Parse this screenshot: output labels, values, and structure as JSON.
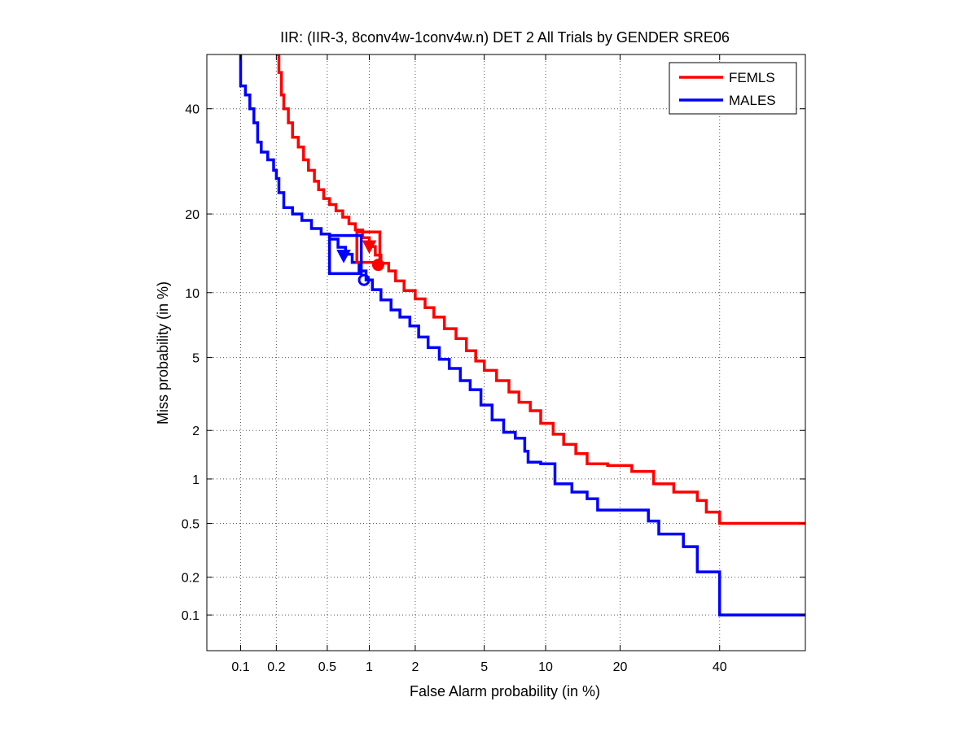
{
  "chart_data": {
    "type": "line",
    "title": "IIR: (IIR-3, 8conv4w-1conv4w.n) DET 2 All Trials by GENDER SRE06",
    "xlabel": "False Alarm probability (in %)",
    "ylabel": "Miss probability (in %)",
    "scale": "normal-deviate (probit)",
    "xlim": [
      0.05,
      60
    ],
    "ylim": [
      0.05,
      52
    ],
    "x_ticks": [
      0.1,
      0.2,
      0.5,
      1,
      2,
      5,
      10,
      20,
      40
    ],
    "x_tick_labels": [
      "0.1",
      "0.2",
      "0.5",
      "1",
      "2",
      "5",
      "10",
      "20",
      "40"
    ],
    "y_ticks": [
      0.1,
      0.2,
      0.5,
      1,
      2,
      5,
      10,
      20,
      40
    ],
    "y_tick_labels": [
      "0.1",
      "0.2",
      "0.5",
      "1",
      "2",
      "5",
      "10",
      "20",
      "40"
    ],
    "grid": true,
    "legend_position": "top-right",
    "series": [
      {
        "name": "FEMLS",
        "color": "#ff0000",
        "points": [
          [
            0.2,
            52
          ],
          [
            0.21,
            48
          ],
          [
            0.22,
            43
          ],
          [
            0.23,
            40
          ],
          [
            0.25,
            37
          ],
          [
            0.27,
            34
          ],
          [
            0.3,
            32
          ],
          [
            0.33,
            29.5
          ],
          [
            0.36,
            27.5
          ],
          [
            0.4,
            25.5
          ],
          [
            0.43,
            24
          ],
          [
            0.47,
            22.5
          ],
          [
            0.52,
            21.5
          ],
          [
            0.58,
            20.5
          ],
          [
            0.65,
            19.5
          ],
          [
            0.72,
            18.5
          ],
          [
            0.8,
            17.6
          ],
          [
            0.9,
            16.5
          ],
          [
            1.0,
            15.3
          ],
          [
            1.1,
            14.2
          ],
          [
            1.2,
            13.2
          ],
          [
            1.35,
            12.3
          ],
          [
            1.5,
            11.2
          ],
          [
            1.7,
            10.2
          ],
          [
            2.0,
            9.4
          ],
          [
            2.3,
            8.6
          ],
          [
            2.6,
            7.8
          ],
          [
            3.0,
            6.9
          ],
          [
            3.5,
            6.2
          ],
          [
            4.0,
            5.4
          ],
          [
            4.5,
            4.8
          ],
          [
            5.0,
            4.3
          ],
          [
            5.8,
            3.8
          ],
          [
            6.7,
            3.3
          ],
          [
            7.5,
            2.9
          ],
          [
            8.5,
            2.6
          ],
          [
            9.5,
            2.2
          ],
          [
            10.8,
            1.9
          ],
          [
            12.0,
            1.65
          ],
          [
            13.5,
            1.45
          ],
          [
            15.0,
            1.25
          ],
          [
            18.0,
            1.22
          ],
          [
            22.0,
            1.12
          ],
          [
            26.0,
            0.93
          ],
          [
            30.0,
            0.82
          ],
          [
            35.0,
            0.72
          ],
          [
            37.0,
            0.6
          ],
          [
            40.0,
            0.5
          ],
          [
            60.0,
            0.5
          ]
        ]
      },
      {
        "name": "MALES",
        "color": "#0000ff",
        "points": [
          [
            0.1,
            52
          ],
          [
            0.1,
            45
          ],
          [
            0.11,
            43
          ],
          [
            0.12,
            40
          ],
          [
            0.13,
            37
          ],
          [
            0.14,
            33
          ],
          [
            0.15,
            31
          ],
          [
            0.17,
            29.5
          ],
          [
            0.19,
            27.5
          ],
          [
            0.2,
            26
          ],
          [
            0.21,
            23.5
          ],
          [
            0.23,
            21
          ],
          [
            0.27,
            20
          ],
          [
            0.32,
            19
          ],
          [
            0.38,
            17.8
          ],
          [
            0.45,
            17
          ],
          [
            0.52,
            16.3
          ],
          [
            0.6,
            15.2
          ],
          [
            0.68,
            14.3
          ],
          [
            0.76,
            13.3
          ],
          [
            0.85,
            12.3
          ],
          [
            0.95,
            11.3
          ],
          [
            1.05,
            10.3
          ],
          [
            1.2,
            9.3
          ],
          [
            1.4,
            8.4
          ],
          [
            1.6,
            7.8
          ],
          [
            1.85,
            7.1
          ],
          [
            2.1,
            6.3
          ],
          [
            2.4,
            5.6
          ],
          [
            2.8,
            4.9
          ],
          [
            3.2,
            4.4
          ],
          [
            3.7,
            3.8
          ],
          [
            4.2,
            3.4
          ],
          [
            4.8,
            2.8
          ],
          [
            5.5,
            2.3
          ],
          [
            6.3,
            1.95
          ],
          [
            7.2,
            1.8
          ],
          [
            8.0,
            1.5
          ],
          [
            8.3,
            1.28
          ],
          [
            9.5,
            1.25
          ],
          [
            11.0,
            0.93
          ],
          [
            13.0,
            0.82
          ],
          [
            15.0,
            0.74
          ],
          [
            16.5,
            0.62
          ],
          [
            20.0,
            0.62
          ],
          [
            25.0,
            0.52
          ],
          [
            27.0,
            0.42
          ],
          [
            32.0,
            0.34
          ],
          [
            35.0,
            0.22
          ],
          [
            40.0,
            0.1
          ],
          [
            60.0,
            0.1
          ]
        ]
      }
    ],
    "markers": [
      {
        "series": "FEMLS",
        "shape": "square",
        "x": [
          0.82,
          1.18
        ],
        "y": [
          13.3,
          17.3
        ]
      },
      {
        "series": "FEMLS",
        "shape": "triangle",
        "x": 1.0,
        "y": 15.2
      },
      {
        "series": "FEMLS",
        "shape": "filled-circle",
        "x": 1.15,
        "y": 13.0
      },
      {
        "series": "MALES",
        "shape": "square",
        "x": [
          0.52,
          0.88
        ],
        "y": [
          12.0,
          16.8
        ]
      },
      {
        "series": "MALES",
        "shape": "triangle",
        "x": 0.66,
        "y": 14.0
      },
      {
        "series": "MALES",
        "shape": "circle",
        "x": 0.92,
        "y": 11.3
      }
    ]
  }
}
